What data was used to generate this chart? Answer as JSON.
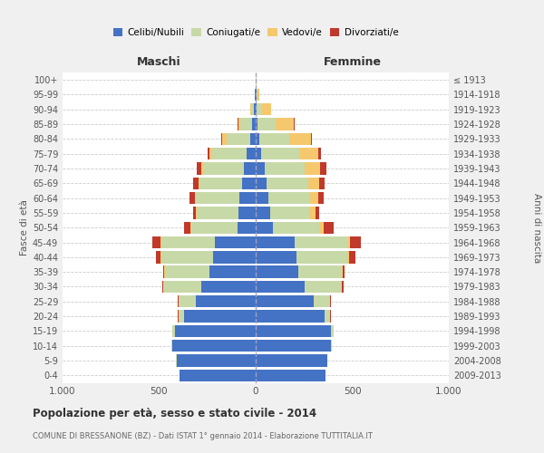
{
  "age_groups": [
    "0-4",
    "5-9",
    "10-14",
    "15-19",
    "20-24",
    "25-29",
    "30-34",
    "35-39",
    "40-44",
    "45-49",
    "50-54",
    "55-59",
    "60-64",
    "65-69",
    "70-74",
    "75-79",
    "80-84",
    "85-89",
    "90-94",
    "95-99",
    "100+"
  ],
  "birth_years": [
    "2009-2013",
    "2004-2008",
    "1999-2003",
    "1994-1998",
    "1989-1993",
    "1984-1988",
    "1979-1983",
    "1974-1978",
    "1969-1973",
    "1964-1968",
    "1959-1963",
    "1954-1958",
    "1949-1953",
    "1944-1948",
    "1939-1943",
    "1934-1938",
    "1929-1933",
    "1924-1928",
    "1919-1923",
    "1914-1918",
    "≤ 1913"
  ],
  "males": {
    "celibe": [
      395,
      410,
      430,
      420,
      370,
      310,
      280,
      240,
      220,
      210,
      95,
      90,
      85,
      70,
      60,
      45,
      30,
      18,
      8,
      3,
      2
    ],
    "coniugato": [
      1,
      2,
      5,
      10,
      30,
      90,
      195,
      230,
      270,
      280,
      240,
      215,
      225,
      220,
      210,
      180,
      120,
      60,
      15,
      2,
      0
    ],
    "vedovo": [
      0,
      0,
      0,
      0,
      0,
      1,
      2,
      2,
      3,
      3,
      3,
      3,
      6,
      8,
      10,
      15,
      25,
      12,
      3,
      1,
      0
    ],
    "divorziato": [
      0,
      0,
      0,
      0,
      2,
      3,
      5,
      8,
      25,
      40,
      35,
      18,
      28,
      28,
      25,
      8,
      5,
      3,
      1,
      0,
      0
    ]
  },
  "females": {
    "nubile": [
      360,
      370,
      390,
      390,
      355,
      300,
      255,
      220,
      210,
      200,
      90,
      75,
      65,
      55,
      45,
      30,
      20,
      10,
      5,
      3,
      2
    ],
    "coniugata": [
      1,
      2,
      5,
      12,
      30,
      85,
      190,
      225,
      265,
      280,
      240,
      205,
      215,
      215,
      210,
      195,
      155,
      95,
      30,
      5,
      2
    ],
    "vedova": [
      0,
      0,
      0,
      0,
      1,
      2,
      3,
      5,
      8,
      10,
      20,
      28,
      45,
      60,
      80,
      100,
      110,
      90,
      45,
      10,
      2
    ],
    "divorziata": [
      0,
      0,
      0,
      0,
      2,
      4,
      8,
      10,
      32,
      55,
      55,
      20,
      28,
      28,
      30,
      12,
      8,
      5,
      2,
      0,
      0
    ]
  },
  "colors": {
    "celibe": "#4472C4",
    "coniugato": "#C8D9A8",
    "vedovo": "#F5C86E",
    "divorziato": "#C0392B"
  },
  "legend_labels": [
    "Celibi/Nubili",
    "Coniugati/e",
    "Vedovi/e",
    "Divorziati/e"
  ],
  "title1": "Popolazione per età, sesso e stato civile - 2014",
  "title2": "COMUNE DI BRESSANONE (BZ) - Dati ISTAT 1° gennaio 2014 - Elaborazione TUTTITALIA.IT",
  "maschi_label": "Maschi",
  "femmine_label": "Femmine",
  "ylabel_left": "Fasce di età",
  "ylabel_right": "Anni di nascita",
  "xlim": 1000,
  "bg_color": "#f0f0f0",
  "plot_bg": "#ffffff"
}
